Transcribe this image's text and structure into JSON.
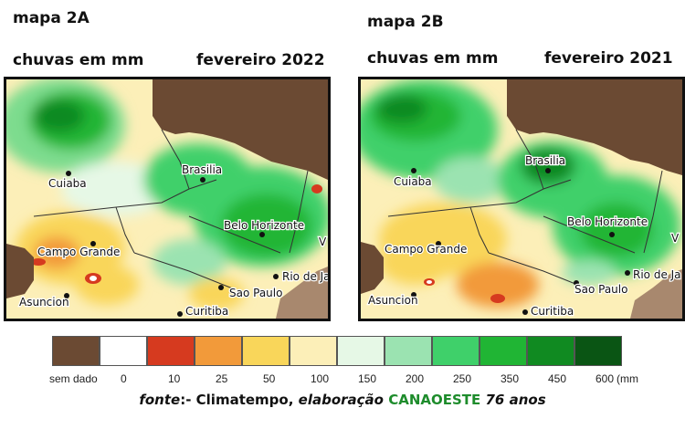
{
  "maps": [
    {
      "title": "mapa 2A",
      "subtitle": "chuvas em mm",
      "period": "fevereiro 2022",
      "cities": [
        "Cuiaba",
        "Brasilia",
        "Belo Horizonte",
        "Campo Grande",
        "Asuncion",
        "Sao Paulo",
        "Rio de Ja",
        "Curitiba",
        "V"
      ]
    },
    {
      "title": "mapa 2B",
      "subtitle": "chuvas em mm",
      "period": "fevereiro 2021",
      "cities": [
        "Cuiaba",
        "Brasilia",
        "Belo Horizonte",
        "Campo Grande",
        "Asuncion",
        "Sao Paulo",
        "Rio de Ja",
        "Curitiba",
        "V"
      ]
    }
  ],
  "legend": {
    "classes": [
      {
        "label": "sem dado",
        "color": "#6b4a33"
      },
      {
        "label": "0",
        "color": "#ffffff"
      },
      {
        "label": "10",
        "color": "#d63a1f"
      },
      {
        "label": "25",
        "color": "#f29a3a"
      },
      {
        "label": "50",
        "color": "#f9d65a"
      },
      {
        "label": "100",
        "color": "#fcefb8"
      },
      {
        "label": "150",
        "color": "#e6f8e6"
      },
      {
        "label": "200",
        "color": "#9be3b1"
      },
      {
        "label": "250",
        "color": "#3fd06a"
      },
      {
        "label": "350",
        "color": "#20b534"
      },
      {
        "label": "450",
        "color": "#108a21"
      },
      {
        "label": "600",
        "color": "#0a5514"
      }
    ],
    "unit": "(mm"
  },
  "source": {
    "prefix": "fonte",
    "text1": ":- Climatempo, ",
    "text2": "elaboração",
    "org": "CANAOESTE",
    "suffix": "76 anos"
  }
}
